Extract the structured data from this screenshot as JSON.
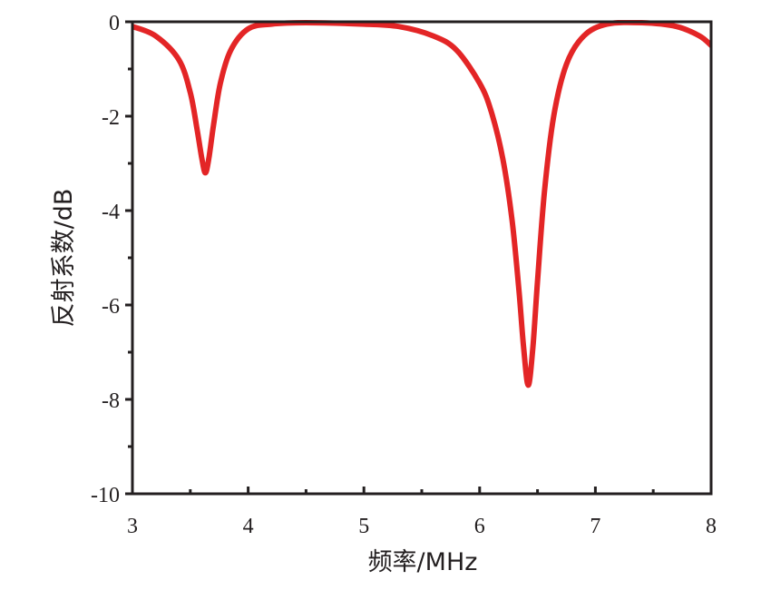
{
  "chart_data": {
    "type": "line",
    "title": "",
    "xlabel": "频率/MHz",
    "ylabel": "反射系数/dB",
    "xlim": [
      3,
      8
    ],
    "ylim": [
      -10,
      0
    ],
    "x_ticks": [
      "3",
      "4",
      "5",
      "6",
      "7",
      "8"
    ],
    "y_ticks": [
      "0",
      "-2",
      "-4",
      "-6",
      "-8",
      "-10"
    ],
    "grid": false,
    "legend": "none",
    "series": [
      {
        "color": "#e32526",
        "x": [
          3.0,
          3.2,
          3.4,
          3.5,
          3.56,
          3.6,
          3.63,
          3.66,
          3.7,
          3.76,
          3.85,
          4.0,
          4.2,
          4.5,
          5.0,
          5.3,
          5.6,
          5.8,
          6.0,
          6.1,
          6.2,
          6.28,
          6.34,
          6.38,
          6.42,
          6.46,
          6.5,
          6.56,
          6.64,
          6.75,
          6.9,
          7.1,
          7.4,
          7.7,
          7.9,
          8.0
        ],
        "y": [
          -0.1,
          -0.3,
          -0.8,
          -1.5,
          -2.3,
          -2.9,
          -3.2,
          -2.9,
          -2.2,
          -1.3,
          -0.6,
          -0.15,
          -0.05,
          -0.02,
          -0.05,
          -0.1,
          -0.3,
          -0.6,
          -1.3,
          -1.9,
          -2.9,
          -4.2,
          -5.7,
          -6.9,
          -7.7,
          -6.9,
          -5.5,
          -3.6,
          -2.0,
          -0.9,
          -0.3,
          -0.05,
          -0.02,
          -0.1,
          -0.3,
          -0.5
        ]
      }
    ]
  }
}
